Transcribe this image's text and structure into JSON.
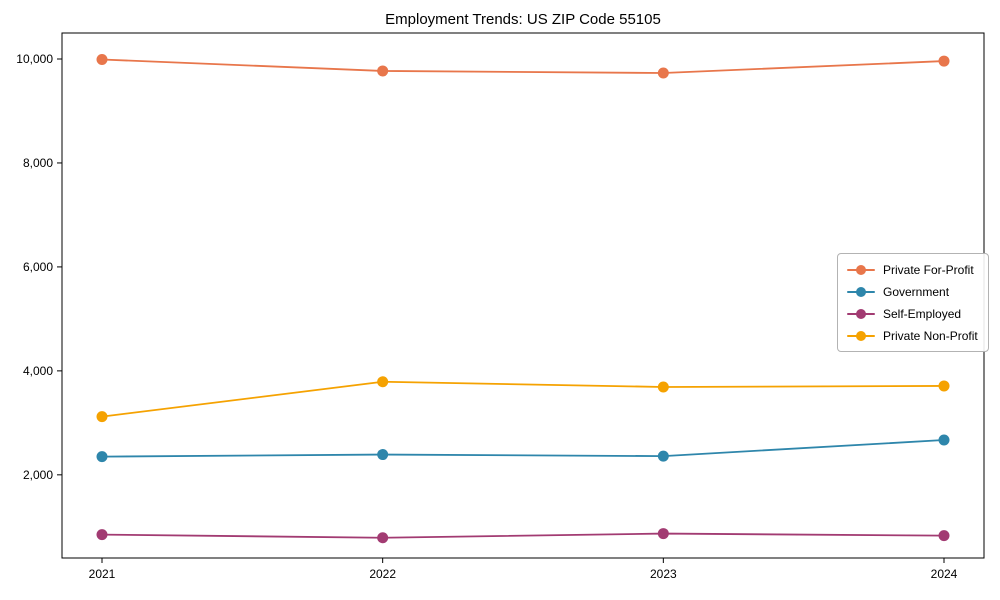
{
  "chart_data": {
    "type": "line",
    "title": "Employment Trends: US ZIP Code 55105",
    "xlabel": "",
    "ylabel": "",
    "x": [
      "2021",
      "2022",
      "2023",
      "2024"
    ],
    "ylim": [
      400,
      10500
    ],
    "yticks": [
      {
        "value": 2000,
        "label": "2,000"
      },
      {
        "value": 4000,
        "label": "4,000"
      },
      {
        "value": 6000,
        "label": "6,000"
      },
      {
        "value": 8000,
        "label": "8,000"
      },
      {
        "value": 10000,
        "label": "10,000"
      }
    ],
    "grid": false,
    "legend_position": "center-right",
    "frame_color": "#000000",
    "series": [
      {
        "name": "Private For-Profit",
        "color": "#E8764B",
        "values": [
          9990,
          9770,
          9730,
          9960
        ]
      },
      {
        "name": "Government",
        "color": "#2E86AB",
        "values": [
          2350,
          2390,
          2360,
          2670
        ]
      },
      {
        "name": "Self-Employed",
        "color": "#A23B72",
        "values": [
          850,
          790,
          870,
          830
        ]
      },
      {
        "name": "Private Non-Profit",
        "color": "#F5A201",
        "values": [
          3120,
          3790,
          3690,
          3710
        ]
      }
    ]
  }
}
